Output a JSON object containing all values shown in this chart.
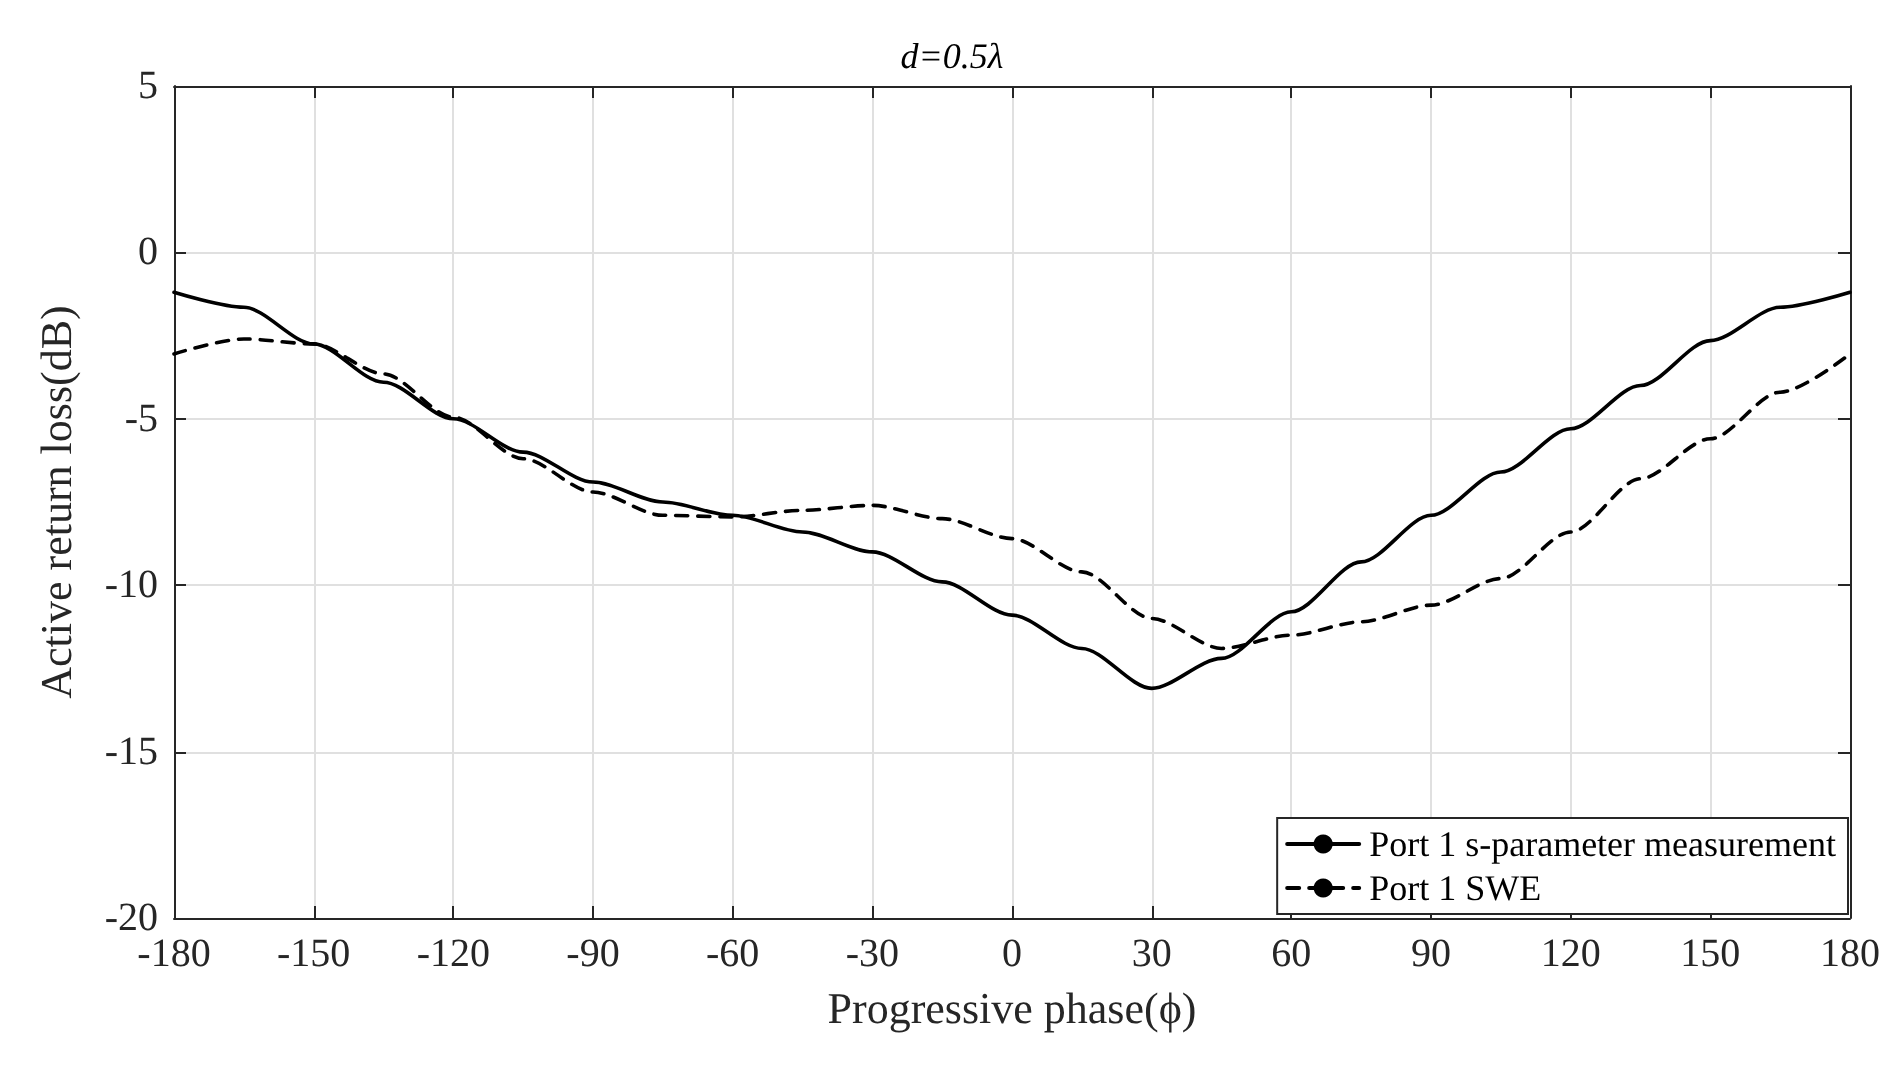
{
  "chart_data": {
    "type": "line",
    "title": "d=0.5λ",
    "xlabel": "Progressive phase(ϕ)",
    "ylabel": "Active return loss(dB)",
    "x": [
      -180,
      -165,
      -150,
      -135,
      -120,
      -105,
      -90,
      -75,
      -60,
      -45,
      -30,
      -15,
      0,
      15,
      30,
      45,
      60,
      75,
      90,
      105,
      120,
      135,
      150,
      165,
      180
    ],
    "series": [
      {
        "name": "Port 1 s-parameter measurement",
        "color": "#000000",
        "line_style": "solid",
        "values": [
          -1.2,
          -1.65,
          -2.75,
          -3.9,
          -5.0,
          -6.0,
          -6.9,
          -7.5,
          -7.9,
          -8.4,
          -9.0,
          -9.9,
          -10.9,
          -11.9,
          -13.1,
          -12.2,
          -10.8,
          -9.3,
          -7.9,
          -6.6,
          -5.3,
          -4.0,
          -2.65,
          -1.65,
          -1.2
        ]
      },
      {
        "name": "Port 1 SWE",
        "color": "#000000",
        "line_style": "dashed",
        "values": [
          -3.05,
          -2.6,
          -2.75,
          -3.65,
          -4.95,
          -6.2,
          -7.2,
          -7.9,
          -7.95,
          -7.75,
          -7.6,
          -8.0,
          -8.6,
          -9.6,
          -11.0,
          -11.9,
          -11.5,
          -11.1,
          -10.6,
          -9.8,
          -8.4,
          -6.8,
          -5.6,
          -4.2,
          -3.05
        ]
      }
    ],
    "xlim": [
      -180,
      180
    ],
    "xticks": [
      -180,
      -150,
      -120,
      -90,
      -60,
      -30,
      0,
      30,
      60,
      90,
      120,
      150,
      180
    ],
    "ylim": [
      -20,
      5
    ],
    "yticks": [
      -20,
      -15,
      -10,
      -5,
      0,
      5
    ],
    "grid": true,
    "legend": "bottom right",
    "marker": "none"
  }
}
